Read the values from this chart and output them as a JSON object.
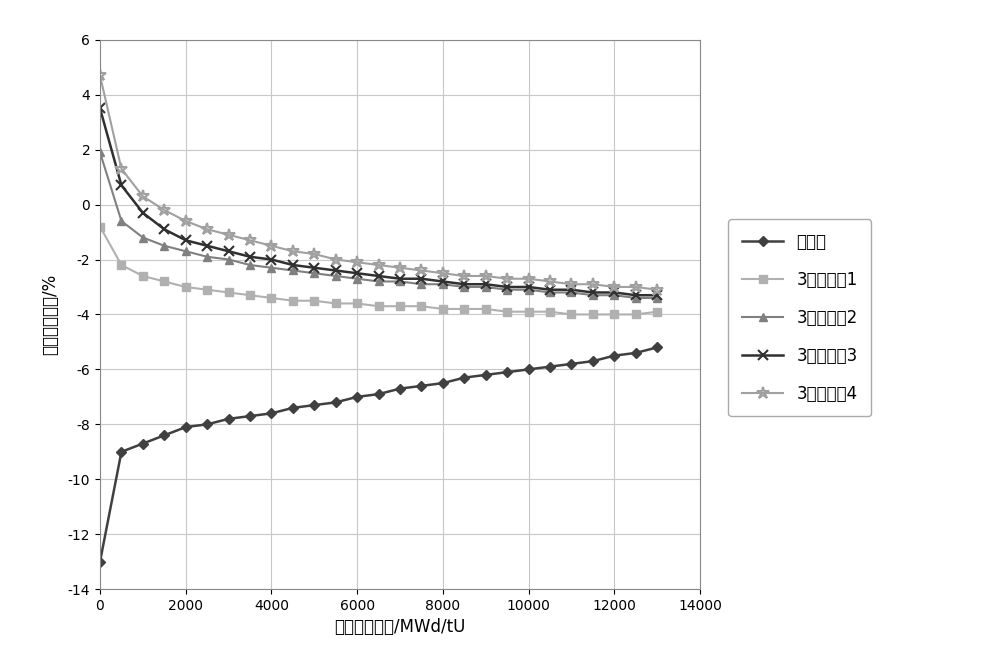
{
  "title": "",
  "xlabel": "平衡循环燃耗/MWd/tU",
  "ylabel": "功率轴向偏移/%",
  "xlim": [
    0,
    14000
  ],
  "ylim": [
    -14,
    6
  ],
  "xticks": [
    0,
    2000,
    4000,
    6000,
    8000,
    10000,
    12000,
    14000
  ],
  "yticks": [
    -14,
    -12,
    -10,
    -8,
    -6,
    -4,
    -2,
    0,
    2,
    4,
    6
  ],
  "series": [
    {
      "label": "不分区",
      "color": "#404040",
      "marker": "D",
      "markersize": 5,
      "linewidth": 1.8,
      "x": [
        0,
        500,
        1000,
        1500,
        2000,
        2500,
        3000,
        3500,
        4000,
        4500,
        5000,
        5500,
        6000,
        6500,
        7000,
        7500,
        8000,
        8500,
        9000,
        9500,
        10000,
        10500,
        11000,
        11500,
        12000,
        12500,
        13000
      ],
      "y": [
        -13.0,
        -9.0,
        -8.7,
        -8.4,
        -8.1,
        -8.0,
        -7.8,
        -7.7,
        -7.6,
        -7.4,
        -7.3,
        -7.2,
        -7.0,
        -6.9,
        -6.7,
        -6.6,
        -6.5,
        -6.3,
        -6.2,
        -6.1,
        -6.0,
        -5.9,
        -5.8,
        -5.7,
        -5.5,
        -5.4,
        -5.2
      ]
    },
    {
      "label": "3分区方案1",
      "color": "#b0b0b0",
      "marker": "s",
      "markersize": 6,
      "linewidth": 1.5,
      "x": [
        0,
        500,
        1000,
        1500,
        2000,
        2500,
        3000,
        3500,
        4000,
        4500,
        5000,
        5500,
        6000,
        6500,
        7000,
        7500,
        8000,
        8500,
        9000,
        9500,
        10000,
        10500,
        11000,
        11500,
        12000,
        12500,
        13000
      ],
      "y": [
        -0.8,
        -2.2,
        -2.6,
        -2.8,
        -3.0,
        -3.1,
        -3.2,
        -3.3,
        -3.4,
        -3.5,
        -3.5,
        -3.6,
        -3.6,
        -3.7,
        -3.7,
        -3.7,
        -3.8,
        -3.8,
        -3.8,
        -3.9,
        -3.9,
        -3.9,
        -4.0,
        -4.0,
        -4.0,
        -4.0,
        -3.9
      ]
    },
    {
      "label": "3分区方案2",
      "color": "#808080",
      "marker": "^",
      "markersize": 6,
      "linewidth": 1.5,
      "x": [
        0,
        500,
        1000,
        1500,
        2000,
        2500,
        3000,
        3500,
        4000,
        4500,
        5000,
        5500,
        6000,
        6500,
        7000,
        7500,
        8000,
        8500,
        9000,
        9500,
        10000,
        10500,
        11000,
        11500,
        12000,
        12500,
        13000
      ],
      "y": [
        1.9,
        -0.6,
        -1.2,
        -1.5,
        -1.7,
        -1.9,
        -2.0,
        -2.2,
        -2.3,
        -2.4,
        -2.5,
        -2.6,
        -2.7,
        -2.8,
        -2.8,
        -2.9,
        -2.9,
        -3.0,
        -3.0,
        -3.1,
        -3.1,
        -3.2,
        -3.2,
        -3.3,
        -3.3,
        -3.4,
        -3.4
      ]
    },
    {
      "label": "3分区方案3",
      "color": "#303030",
      "marker": "x",
      "markersize": 7,
      "linewidth": 1.8,
      "x": [
        0,
        500,
        1000,
        1500,
        2000,
        2500,
        3000,
        3500,
        4000,
        4500,
        5000,
        5500,
        6000,
        6500,
        7000,
        7500,
        8000,
        8500,
        9000,
        9500,
        10000,
        10500,
        11000,
        11500,
        12000,
        12500,
        13000
      ],
      "y": [
        3.5,
        0.7,
        -0.3,
        -0.9,
        -1.3,
        -1.5,
        -1.7,
        -1.9,
        -2.0,
        -2.2,
        -2.3,
        -2.4,
        -2.5,
        -2.6,
        -2.7,
        -2.7,
        -2.8,
        -2.9,
        -2.9,
        -3.0,
        -3.0,
        -3.1,
        -3.1,
        -3.2,
        -3.2,
        -3.3,
        -3.3
      ]
    },
    {
      "label": "3分区方案4",
      "color": "#a0a0a0",
      "marker": "*",
      "markersize": 9,
      "linewidth": 1.5,
      "x": [
        0,
        500,
        1000,
        1500,
        2000,
        2500,
        3000,
        3500,
        4000,
        4500,
        5000,
        5500,
        6000,
        6500,
        7000,
        7500,
        8000,
        8500,
        9000,
        9500,
        10000,
        10500,
        11000,
        11500,
        12000,
        12500,
        13000
      ],
      "y": [
        4.7,
        1.3,
        0.3,
        -0.2,
        -0.6,
        -0.9,
        -1.1,
        -1.3,
        -1.5,
        -1.7,
        -1.8,
        -2.0,
        -2.1,
        -2.2,
        -2.3,
        -2.4,
        -2.5,
        -2.6,
        -2.6,
        -2.7,
        -2.7,
        -2.8,
        -2.9,
        -2.9,
        -3.0,
        -3.0,
        -3.1
      ]
    }
  ],
  "background_color": "#ffffff",
  "grid_color": "#c8c8c8",
  "font_size": 12,
  "legend_fontsize": 12
}
